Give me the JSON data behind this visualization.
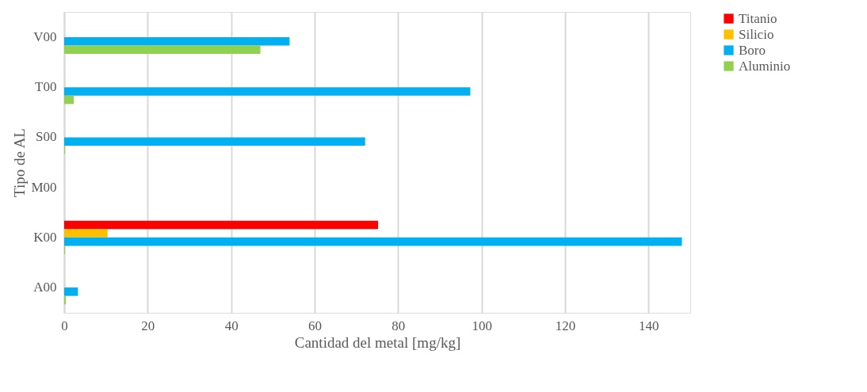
{
  "chart_data": {
    "type": "bar",
    "orientation": "horizontal",
    "xlabel": "Cantidad del metal [mg/kg]",
    "ylabel": "Tipo de AL",
    "categories": [
      "V00",
      "T00",
      "S00",
      "M00",
      "K00",
      "A00"
    ],
    "series": [
      {
        "name": "Titanio",
        "color": "#ff0000",
        "values": [
          0,
          0,
          0,
          0,
          75.2,
          0
        ]
      },
      {
        "name": "Silicio",
        "color": "#ffc000",
        "values": [
          0,
          0,
          0,
          0,
          10.4,
          0
        ]
      },
      {
        "name": "Boro",
        "color": "#00b0f0",
        "values": [
          54.0,
          97.3,
          72.1,
          0,
          148.0,
          3.3
        ]
      },
      {
        "name": "Aluminio",
        "color": "#92d050",
        "values": [
          47.0,
          2.3,
          0.2,
          0,
          0.2,
          0.4
        ]
      }
    ],
    "xlim": [
      0,
      150
    ],
    "xticks": [
      0,
      20,
      40,
      60,
      80,
      100,
      120,
      140
    ],
    "grid": "x",
    "legend": "right"
  }
}
